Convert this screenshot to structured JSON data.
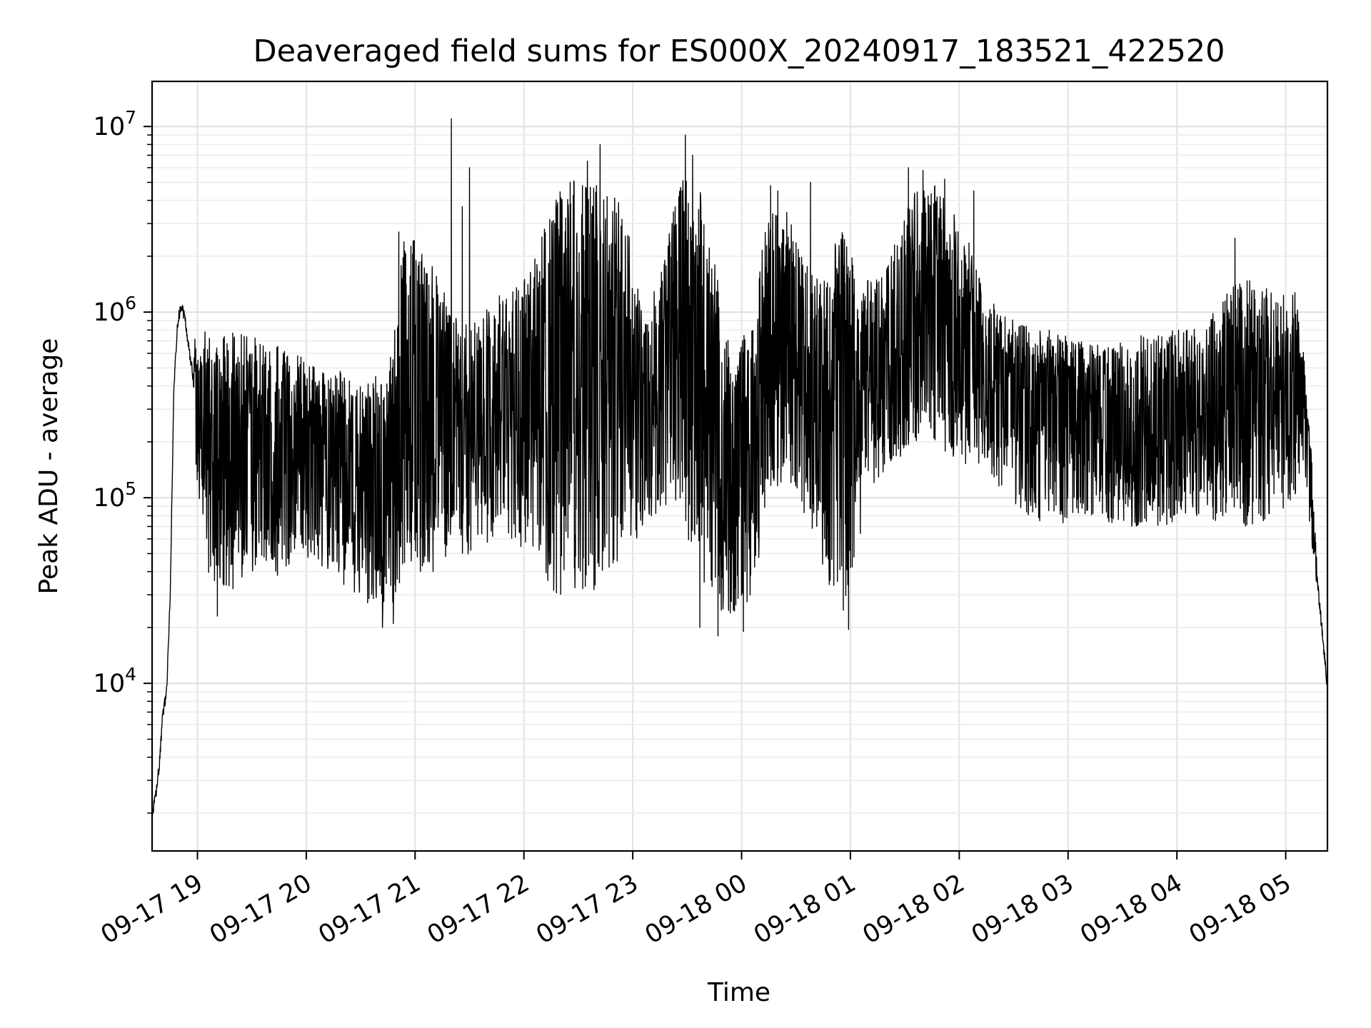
{
  "chart_data": {
    "type": "line",
    "title": "Deaveraged field sums for ES000X_20240917_183521_422520",
    "xlabel": "Time",
    "ylabel": "Peak ADU - average",
    "yscale": "log",
    "ylim": [
      1250,
      17500000
    ],
    "xlim": [
      "2024-09-17 18:35",
      "2024-09-18 05:23"
    ],
    "grid": "major and minor",
    "line_color": "#000000",
    "x_ticks": [
      {
        "value": "2024-09-17 19:00",
        "label": "09-17 19"
      },
      {
        "value": "2024-09-17 20:00",
        "label": "09-17 20"
      },
      {
        "value": "2024-09-17 21:00",
        "label": "09-17 21"
      },
      {
        "value": "2024-09-17 22:00",
        "label": "09-17 22"
      },
      {
        "value": "2024-09-17 23:00",
        "label": "09-17 23"
      },
      {
        "value": "2024-09-18 00:00",
        "label": "09-18 00"
      },
      {
        "value": "2024-09-18 01:00",
        "label": "09-18 01"
      },
      {
        "value": "2024-09-18 02:00",
        "label": "09-18 02"
      },
      {
        "value": "2024-09-18 03:00",
        "label": "09-18 03"
      },
      {
        "value": "2024-09-18 04:00",
        "label": "09-18 04"
      },
      {
        "value": "2024-09-18 05:00",
        "label": "09-18 05"
      }
    ],
    "y_ticks": [
      {
        "value": 10000,
        "base": "10",
        "exp": "4"
      },
      {
        "value": 100000,
        "base": "10",
        "exp": "5"
      },
      {
        "value": 1000000,
        "base": "10",
        "exp": "6"
      },
      {
        "value": 10000000,
        "base": "10",
        "exp": "7"
      }
    ],
    "series": [
      {
        "x": [
          "2024-09-17 18:35",
          "2024-09-17 18:37",
          "2024-09-17 18:39",
          "2024-09-17 18:41",
          "2024-09-17 18:43",
          "2024-09-17 18:45",
          "2024-09-17 18:47",
          "2024-09-17 18:49",
          "2024-09-17 18:51",
          "2024-09-17 18:53",
          "2024-09-17 18:55",
          "2024-09-17 18:57",
          "2024-09-17 18:59",
          "2024-09-17 19:05",
          "2024-09-17 19:15",
          "2024-09-17 19:25",
          "2024-09-17 19:35",
          "2024-09-17 19:45",
          "2024-09-17 19:55",
          "2024-09-17 20:05",
          "2024-09-17 20:15",
          "2024-09-17 20:25",
          "2024-09-17 20:35",
          "2024-09-17 20:45",
          "2024-09-17 20:55",
          "2024-09-17 21:05",
          "2024-09-17 21:15",
          "2024-09-17 21:25",
          "2024-09-17 21:35",
          "2024-09-17 21:45",
          "2024-09-17 21:55",
          "2024-09-17 22:05",
          "2024-09-17 22:15",
          "2024-09-17 22:25",
          "2024-09-17 22:35",
          "2024-09-17 22:45",
          "2024-09-17 22:55",
          "2024-09-17 23:05",
          "2024-09-17 23:15",
          "2024-09-17 23:25",
          "2024-09-17 23:35",
          "2024-09-17 23:45",
          "2024-09-17 23:55",
          "2024-09-18 00:05",
          "2024-09-18 00:15",
          "2024-09-18 00:25",
          "2024-09-18 00:35",
          "2024-09-18 00:45",
          "2024-09-18 00:55",
          "2024-09-18 01:05",
          "2024-09-18 01:15",
          "2024-09-18 01:25",
          "2024-09-18 01:35",
          "2024-09-18 01:45",
          "2024-09-18 01:55",
          "2024-09-18 02:05",
          "2024-09-18 02:15",
          "2024-09-18 02:25",
          "2024-09-18 02:35",
          "2024-09-18 02:45",
          "2024-09-18 02:55",
          "2024-09-18 03:05",
          "2024-09-18 03:15",
          "2024-09-18 03:25",
          "2024-09-18 03:35",
          "2024-09-18 03:45",
          "2024-09-18 03:55",
          "2024-09-18 04:05",
          "2024-09-18 04:15",
          "2024-09-18 04:25",
          "2024-09-18 04:35",
          "2024-09-18 04:45",
          "2024-09-18 04:55",
          "2024-09-18 05:05",
          "2024-09-18 05:10",
          "2024-09-18 05:14",
          "2024-09-18 05:17",
          "2024-09-18 05:20",
          "2024-09-18 05:23"
        ],
        "lo": [
          1900,
          2500,
          3600,
          7000,
          9000,
          30000,
          300000,
          700000,
          900000,
          800000,
          500000,
          300000,
          150000,
          40000,
          30000,
          35000,
          45000,
          35000,
          50000,
          45000,
          35000,
          30000,
          25000,
          22000,
          35000,
          40000,
          40000,
          45000,
          55000,
          60000,
          55000,
          45000,
          30000,
          30000,
          30000,
          35000,
          40000,
          70000,
          80000,
          100000,
          40000,
          25000,
          22000,
          25000,
          100000,
          120000,
          80000,
          40000,
          22000,
          60000,
          120000,
          150000,
          200000,
          200000,
          150000,
          150000,
          150000,
          100000,
          80000,
          70000,
          70000,
          80000,
          80000,
          70000,
          70000,
          70000,
          70000,
          80000,
          80000,
          70000,
          70000,
          70000,
          80000,
          100000,
          150000,
          60000,
          30000,
          15000,
          9500
        ],
        "hi": [
          1900,
          2500,
          3600,
          7000,
          9000,
          30000,
          500000,
          1100000,
          1300000,
          1100000,
          900000,
          800000,
          700000,
          800000,
          750000,
          800000,
          700000,
          650000,
          600000,
          500000,
          500000,
          450000,
          450000,
          450000,
          3000000,
          2000000,
          1500000,
          800000,
          1000000,
          1200000,
          1500000,
          1800000,
          4000000,
          5000000,
          5500000,
          4500000,
          4000000,
          1000000,
          1500000,
          5000000,
          6000000,
          2000000,
          500000,
          1000000,
          3500000,
          3500000,
          2000000,
          1500000,
          3000000,
          1500000,
          1500000,
          2500000,
          4500000,
          5000000,
          4000000,
          2500000,
          1200000,
          1000000,
          900000,
          800000,
          800000,
          700000,
          700000,
          700000,
          700000,
          800000,
          800000,
          800000,
          900000,
          1200000,
          1500000,
          1500000,
          1200000,
          1300000,
          600000,
          200000,
          50000,
          25000,
          9500
        ],
        "spikes": [
          {
            "x": "2024-09-17 20:51",
            "y": 2700000
          },
          {
            "x": "2024-09-17 21:20",
            "y": 11000000
          },
          {
            "x": "2024-09-17 21:26",
            "y": 3700000
          },
          {
            "x": "2024-09-17 21:30",
            "y": 6000000
          },
          {
            "x": "2024-09-17 22:35",
            "y": 6500000
          },
          {
            "x": "2024-09-17 22:42",
            "y": 8000000
          },
          {
            "x": "2024-09-17 23:29",
            "y": 9000000
          },
          {
            "x": "2024-09-17 23:33",
            "y": 7000000
          },
          {
            "x": "2024-09-18 00:16",
            "y": 4800000
          },
          {
            "x": "2024-09-18 00:20",
            "y": 4500000
          },
          {
            "x": "2024-09-18 00:38",
            "y": 5000000
          },
          {
            "x": "2024-09-18 01:32",
            "y": 6000000
          },
          {
            "x": "2024-09-18 01:40",
            "y": 5800000
          },
          {
            "x": "2024-09-18 01:52",
            "y": 5200000
          },
          {
            "x": "2024-09-18 02:08",
            "y": 4500000
          },
          {
            "x": "2024-09-18 04:32",
            "y": 2500000
          },
          {
            "x": "2024-09-17 23:37",
            "y": 20000
          },
          {
            "x": "2024-09-17 23:47",
            "y": 18000
          },
          {
            "x": "2024-09-18 00:01",
            "y": 19000
          },
          {
            "x": "2024-09-18 00:59",
            "y": 19500
          },
          {
            "x": "2024-09-17 20:42",
            "y": 20000
          },
          {
            "x": "2024-09-17 20:48",
            "y": 21000
          },
          {
            "x": "2024-09-17 19:11",
            "y": 23000
          }
        ]
      }
    ]
  }
}
